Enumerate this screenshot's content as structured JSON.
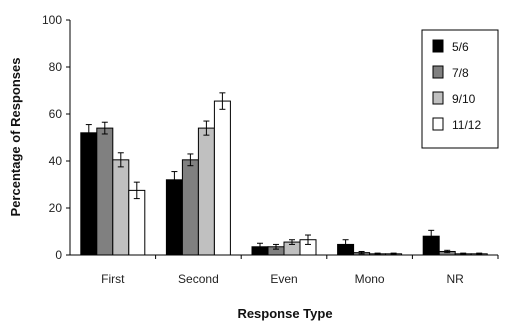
{
  "chart_data": {
    "type": "bar",
    "xlabel": "Response Type",
    "ylabel": "Percentage of Responses",
    "ylim": [
      0,
      100
    ],
    "yticks": [
      0,
      20,
      40,
      60,
      80,
      100
    ],
    "grid": false,
    "legend_position": "top-right",
    "categories": [
      "First",
      "Second",
      "Even",
      "Mono",
      "NR"
    ],
    "series": [
      {
        "name": "5/6",
        "color": "#000000",
        "values": [
          52,
          32,
          3.5,
          4.5,
          8
        ],
        "errors": [
          3.5,
          3.5,
          1.5,
          2,
          2.5
        ]
      },
      {
        "name": "7/8",
        "color": "#808080",
        "values": [
          54,
          40.5,
          3.5,
          1,
          1.5
        ],
        "errors": [
          2.5,
          2.5,
          1,
          0.5,
          0.5
        ]
      },
      {
        "name": "9/10",
        "color": "#c0c0c0",
        "values": [
          40.5,
          54,
          5.5,
          0.5,
          0.5
        ],
        "errors": [
          3,
          3,
          1,
          0.3,
          0.3
        ]
      },
      {
        "name": "11/12",
        "color": "#ffffff",
        "values": [
          27.5,
          65.5,
          6.5,
          0.5,
          0.5
        ],
        "errors": [
          3.5,
          3.5,
          2,
          0.3,
          0.3
        ]
      }
    ]
  }
}
